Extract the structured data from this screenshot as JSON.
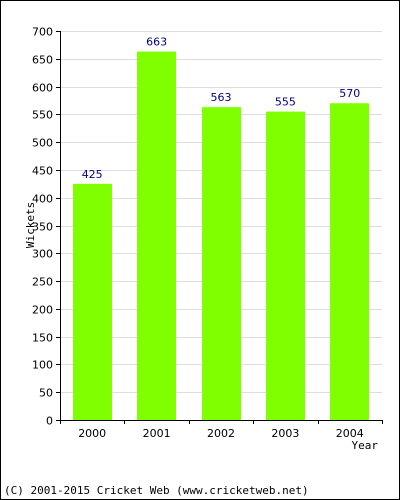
{
  "chart_data": {
    "type": "bar",
    "categories": [
      "2000",
      "2001",
      "2002",
      "2003",
      "2004"
    ],
    "values": [
      425,
      663,
      563,
      555,
      570
    ],
    "data_labels": [
      "425",
      "663",
      "563",
      "555",
      "570"
    ],
    "title": "",
    "xlabel": "Year",
    "ylabel": "Wickets",
    "ylim": [
      0,
      700
    ],
    "yticks": [
      0,
      50,
      100,
      150,
      200,
      250,
      300,
      350,
      400,
      450,
      500,
      550,
      600,
      650,
      700
    ],
    "grid": true,
    "legend": "none",
    "colors": {
      "bar": "#80ff00",
      "data_label": "#000080",
      "grid": "#dddddd",
      "axis": "#000000"
    }
  },
  "footer": {
    "copyright": "(C) 2001-2015 Cricket Web (www.cricketweb.net)"
  }
}
